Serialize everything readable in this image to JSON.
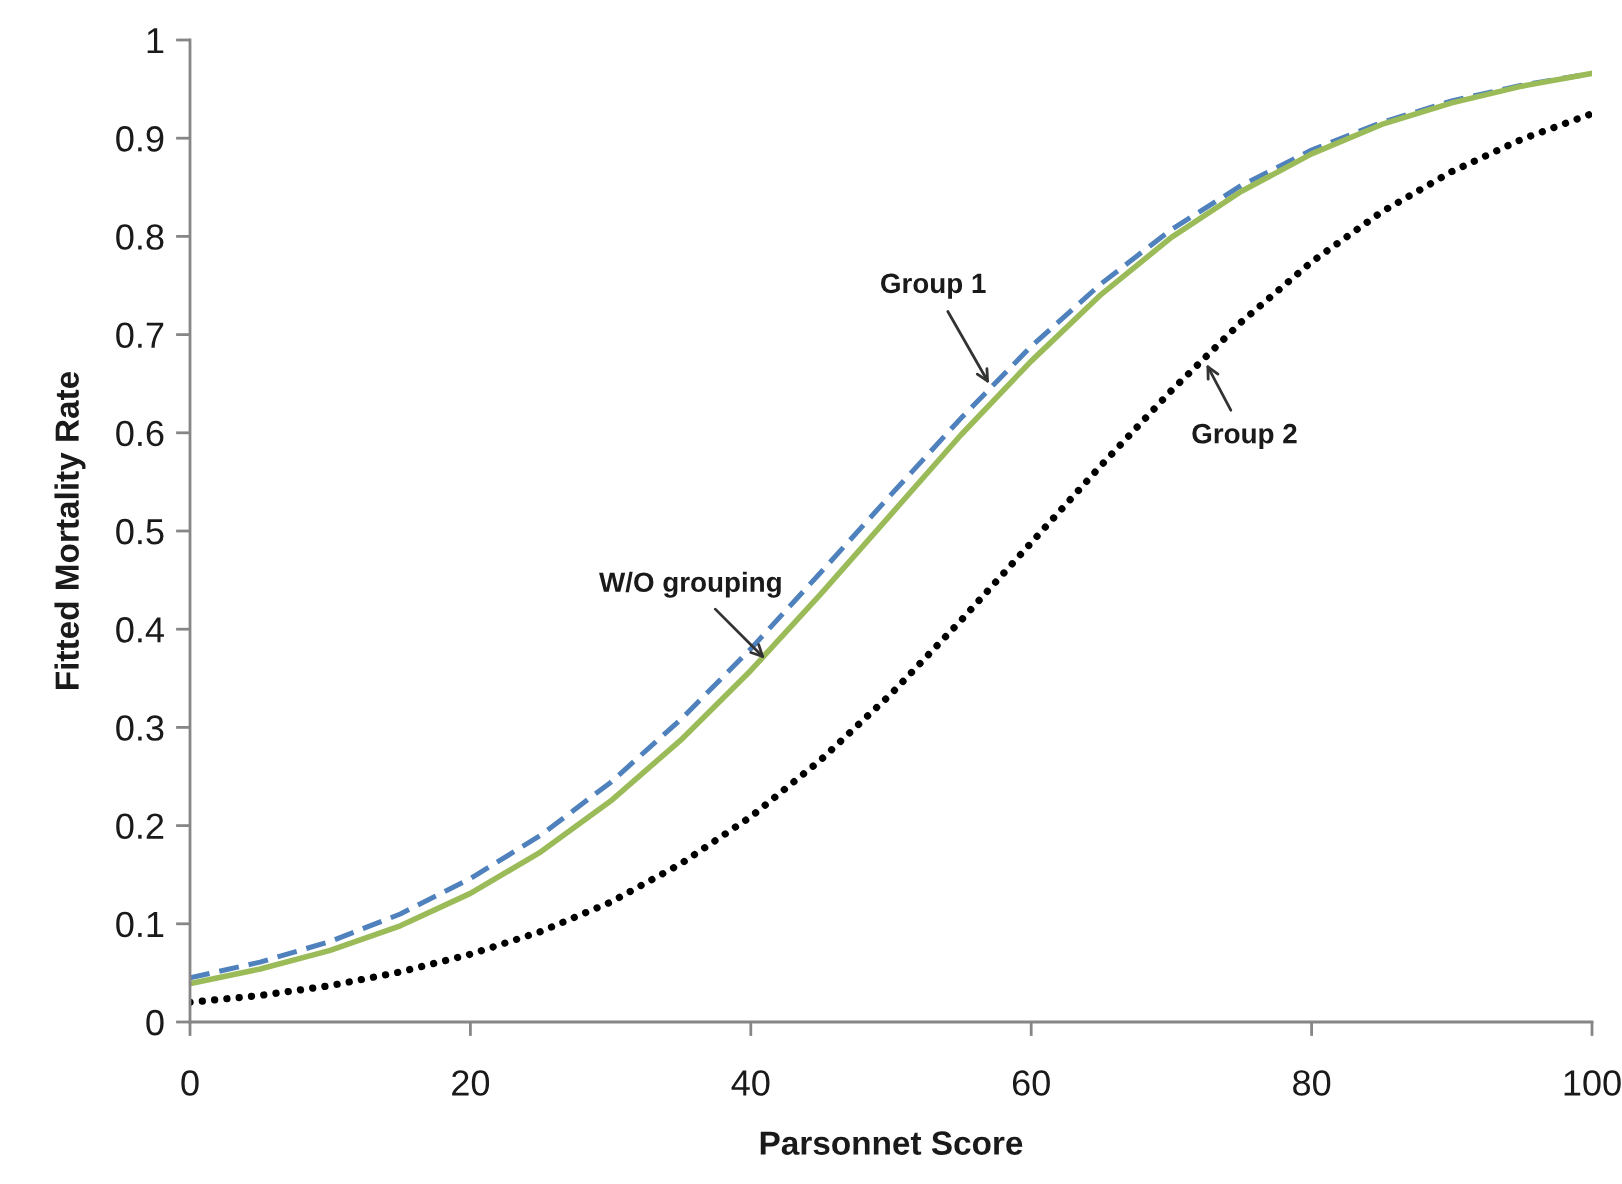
{
  "chart_data": {
    "type": "line",
    "xlabel": "Parsonnet Score",
    "ylabel": "Fitted Mortality Rate",
    "xlim": [
      0,
      100
    ],
    "xticks": [
      0,
      20,
      40,
      60,
      80,
      100
    ],
    "ylim": [
      0,
      1
    ],
    "yticks": [
      0,
      0.1,
      0.2,
      0.3,
      0.4,
      0.5,
      0.6,
      0.7,
      0.8,
      0.9,
      1
    ],
    "grid": false,
    "marker": "none",
    "x": [
      0,
      5,
      10,
      15,
      20,
      25,
      30,
      35,
      40,
      45,
      50,
      55,
      60,
      65,
      70,
      75,
      80,
      85,
      90,
      95,
      100
    ],
    "series": [
      {
        "color": "#4f81bd",
        "line_style": "dashed",
        "values": [
          0.045,
          0.061,
          0.082,
          0.11,
          0.146,
          0.19,
          0.244,
          0.308,
          0.38,
          0.458,
          0.537,
          0.615,
          0.688,
          0.752,
          0.807,
          0.852,
          0.888,
          0.916,
          0.938,
          0.954,
          0.966
        ]
      },
      {
        "color": "#000000",
        "line_style": "dotted",
        "values": [
          0.02,
          0.027,
          0.037,
          0.051,
          0.069,
          0.092,
          0.122,
          0.161,
          0.209,
          0.267,
          0.334,
          0.409,
          0.488,
          0.567,
          0.643,
          0.713,
          0.774,
          0.825,
          0.866,
          0.899,
          0.925
        ]
      },
      {
        "color": "#9bbb59",
        "line_style": "solid",
        "values": [
          0.039,
          0.054,
          0.073,
          0.098,
          0.131,
          0.173,
          0.225,
          0.287,
          0.358,
          0.436,
          0.517,
          0.598,
          0.673,
          0.741,
          0.799,
          0.846,
          0.884,
          0.914,
          0.936,
          0.953,
          0.966
        ]
      }
    ],
    "annotations": [
      {
        "text": "Group 1",
        "x": 57,
        "y": 0.65
      },
      {
        "text": "Group 2",
        "x": 72.5,
        "y": 0.67
      },
      {
        "text": "W/O grouping",
        "x": 41,
        "y": 0.37
      }
    ]
  }
}
